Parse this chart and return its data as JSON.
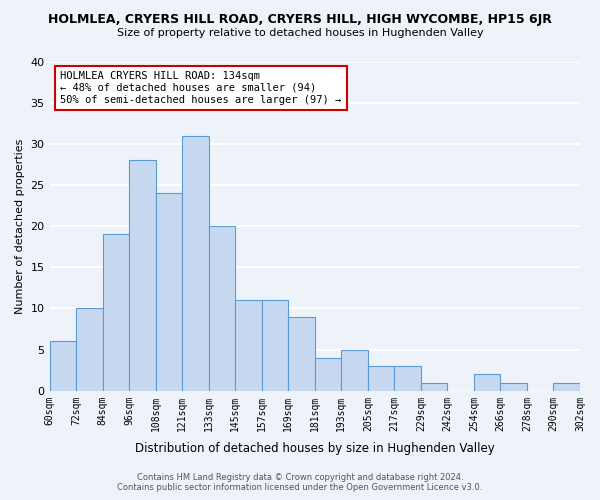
{
  "title": "HOLMLEA, CRYERS HILL ROAD, CRYERS HILL, HIGH WYCOMBE, HP15 6JR",
  "subtitle": "Size of property relative to detached houses in Hughenden Valley",
  "xlabel": "Distribution of detached houses by size in Hughenden Valley",
  "ylabel": "Number of detached properties",
  "bin_labels": [
    "60sqm",
    "72sqm",
    "84sqm",
    "96sqm",
    "108sqm",
    "121sqm",
    "133sqm",
    "145sqm",
    "157sqm",
    "169sqm",
    "181sqm",
    "193sqm",
    "205sqm",
    "217sqm",
    "229sqm",
    "242sqm",
    "254sqm",
    "266sqm",
    "278sqm",
    "290sqm",
    "302sqm"
  ],
  "bar_values": [
    6,
    10,
    19,
    28,
    24,
    31,
    20,
    11,
    11,
    9,
    4,
    5,
    3,
    3,
    1,
    0,
    2,
    1,
    0,
    1
  ],
  "bar_color": "#c6d9f1",
  "bar_edge_color": "#5b9bd5",
  "annotation_title": "HOLMLEA CRYERS HILL ROAD: 134sqm",
  "annotation_line2": "← 48% of detached houses are smaller (94)",
  "annotation_line3": "50% of semi-detached houses are larger (97) →",
  "annotation_box_edge": "#cc0000",
  "ylim": [
    0,
    40
  ],
  "yticks": [
    0,
    5,
    10,
    15,
    20,
    25,
    30,
    35,
    40
  ],
  "footer_line1": "Contains HM Land Registry data © Crown copyright and database right 2024.",
  "footer_line2": "Contains public sector information licensed under the Open Government Licence v3.0.",
  "bg_color": "#eef2f9",
  "grid_color": "#ffffff"
}
